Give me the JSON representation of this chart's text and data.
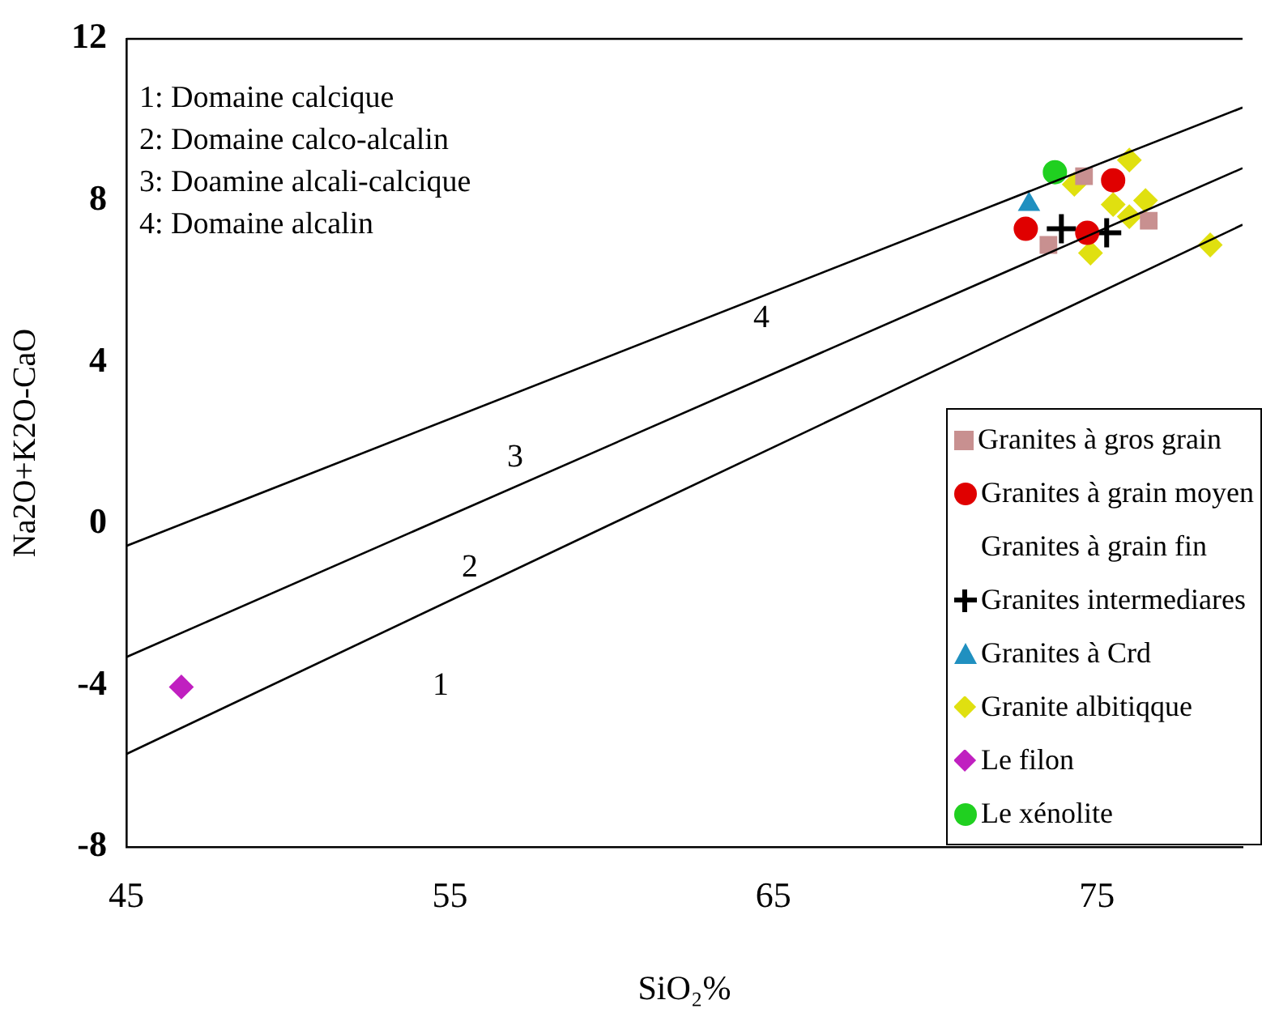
{
  "chart_data": {
    "type": "scatter",
    "xlabel": "SiO₂%",
    "ylabel": "Na2O+K2O-CaO",
    "xlim": [
      45,
      79.5
    ],
    "ylim": [
      -8,
      12
    ],
    "xticks": [
      45,
      55,
      65,
      75
    ],
    "yticks": [
      -8,
      -4,
      0,
      4,
      8,
      12
    ],
    "grid": false,
    "legend": "bottom right",
    "series": [
      {
        "type": "line",
        "marker": "none",
        "color": "#000000",
        "x": [
          45,
          79.5
        ],
        "values": [
          -5.7,
          7.4
        ]
      },
      {
        "type": "line",
        "marker": "none",
        "color": "#000000",
        "x": [
          45,
          79.5
        ],
        "values": [
          -3.3,
          8.8
        ]
      },
      {
        "type": "line",
        "marker": "none",
        "color": "#000000",
        "x": [
          45,
          79.5
        ],
        "values": [
          -0.55,
          10.3
        ]
      },
      {
        "name": "Granites à gros grain",
        "marker": "square",
        "color": "#c89090",
        "x": [
          74.6,
          76.6,
          73.5
        ],
        "values": [
          8.6,
          7.5,
          6.9
        ]
      },
      {
        "name": "Granites à grain moyen",
        "marker": "circle",
        "color": "#e00000",
        "x": [
          75.5,
          74.7,
          72.8
        ],
        "values": [
          8.5,
          7.2,
          7.3
        ]
      },
      {
        "name": "Granites à grain fin",
        "marker": "none"
      },
      {
        "name": "Granites intermediares",
        "marker": "cross",
        "color": "#000000",
        "x": [
          73.9,
          75.3
        ],
        "values": [
          7.3,
          7.2
        ]
      },
      {
        "name": "Granites à Crd",
        "marker": "triangle",
        "color": "#2090c0",
        "x": [
          72.9
        ],
        "values": [
          7.9
        ]
      },
      {
        "name": "Granite albitiqque",
        "marker": "diamond",
        "color": "#e0e010",
        "x": [
          76.0,
          74.3,
          76.5,
          75.5,
          76.0,
          74.8,
          78.5
        ],
        "values": [
          9.0,
          8.4,
          8.0,
          7.9,
          7.6,
          6.7,
          6.9
        ]
      },
      {
        "name": "Le filon",
        "marker": "diamond",
        "color": "#c020c0",
        "x": [
          46.7
        ],
        "values": [
          -4.04
        ]
      },
      {
        "name": "Le xénolite",
        "marker": "circle",
        "color": "#20d020",
        "x": [
          73.7
        ],
        "values": [
          8.7
        ]
      }
    ],
    "annotations": [
      "1: Domaine calcique",
      "2: Domaine calco-alcalin",
      "3: Doamine alcali-calcique",
      "4: Domaine alcalin",
      "1",
      "2",
      "3",
      "4"
    ]
  }
}
